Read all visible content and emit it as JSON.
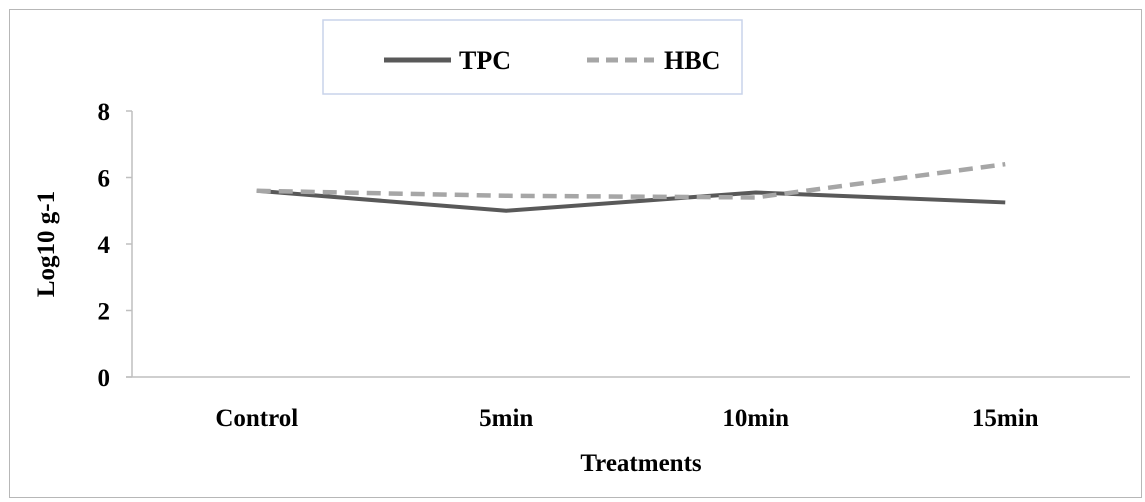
{
  "chart_data": {
    "type": "line",
    "categories": [
      "Control",
      "5min",
      "10min",
      "15min"
    ],
    "series": [
      {
        "name": "TPC",
        "values": [
          5.6,
          5.0,
          5.55,
          5.25
        ],
        "color": "#595959",
        "dash": "solid"
      },
      {
        "name": "HBC",
        "values": [
          5.6,
          5.45,
          5.4,
          6.4
        ],
        "color": "#a6a6a6",
        "dash": "dashed"
      }
    ],
    "title": "",
    "xlabel": "Treatments",
    "ylabel": "Log10 g-1",
    "ylim": [
      0,
      8
    ],
    "yticks": [
      "0",
      "2",
      "4",
      "6",
      "8"
    ],
    "grid": false,
    "legend_position": "top-center"
  }
}
